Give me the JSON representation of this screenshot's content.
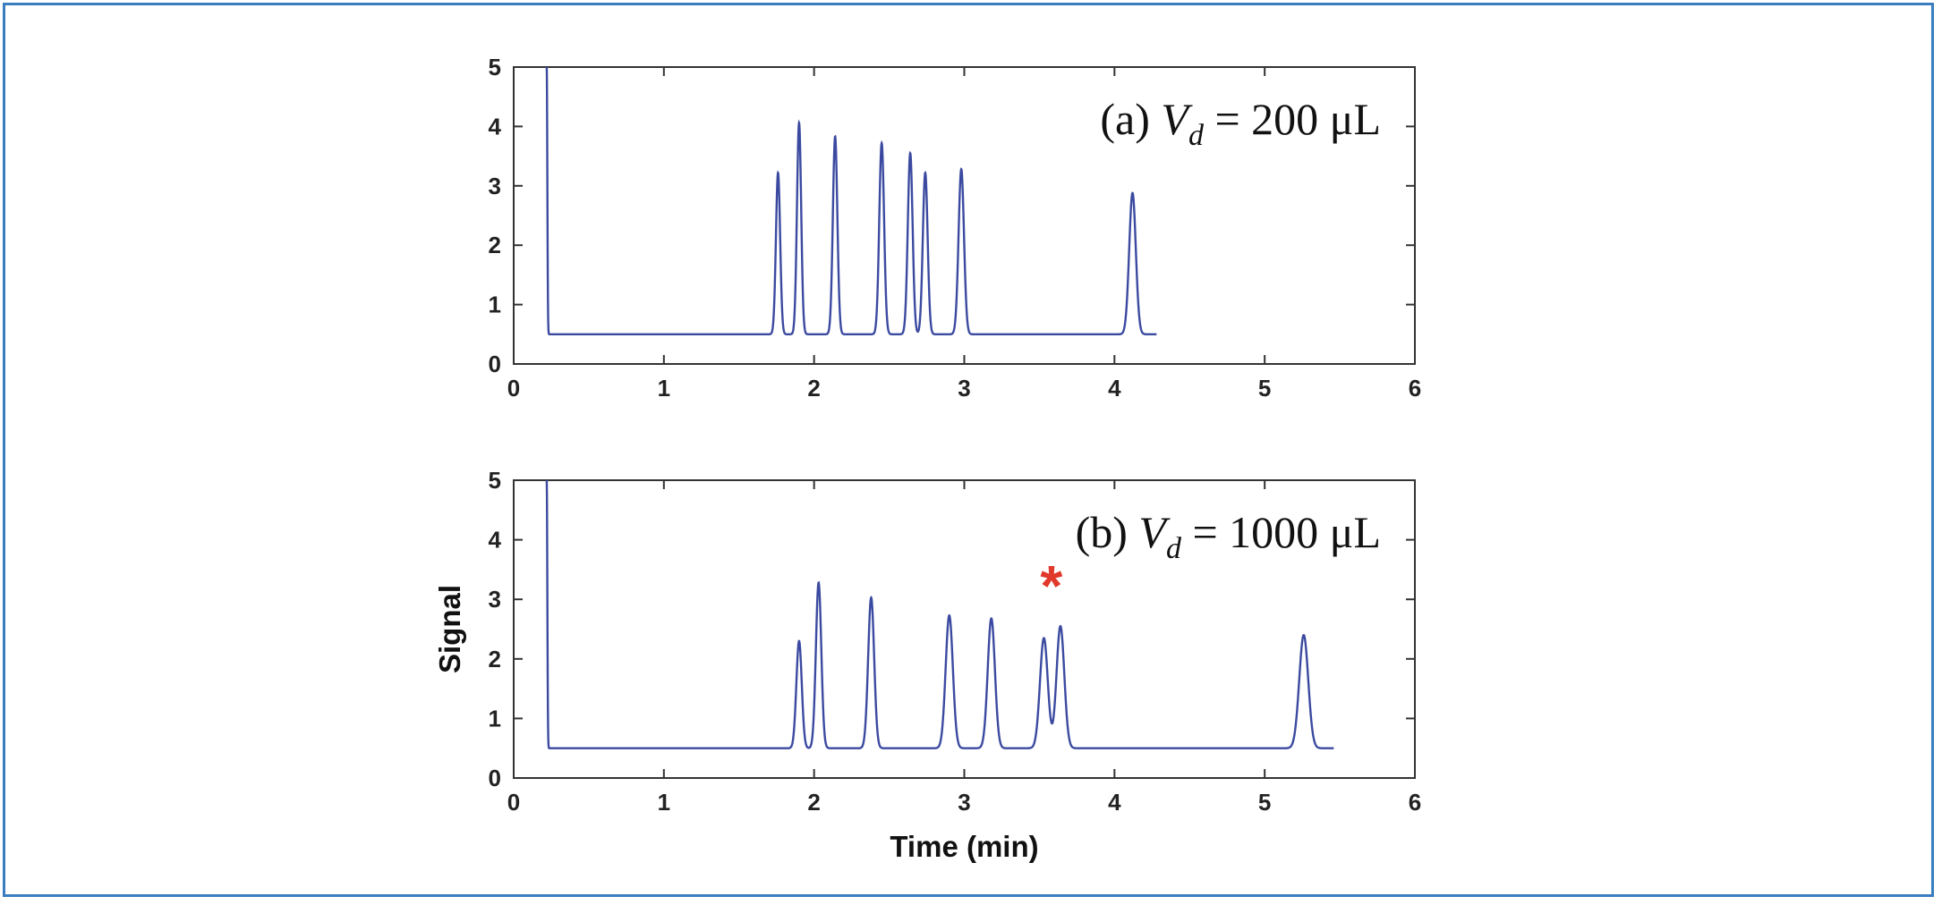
{
  "chart_data": [
    {
      "type": "line",
      "annotation": {
        "prefix": "(a) ",
        "var": "V",
        "sub": "d",
        "rest": " = 200 μL"
      },
      "xlim": [
        0,
        6
      ],
      "ylim": [
        0,
        5
      ],
      "xticks": [
        0,
        1,
        2,
        3,
        4,
        5,
        6
      ],
      "yticks": [
        0,
        1,
        2,
        3,
        4,
        5
      ],
      "xlabel": "",
      "ylabel": "",
      "grid": false,
      "baseline": 0.5,
      "x_end": 4.28,
      "peaks": [
        {
          "x": 0.22,
          "y": 5.0,
          "w": 0.004
        },
        {
          "x": 1.76,
          "y": 3.22,
          "w": 0.014
        },
        {
          "x": 1.9,
          "y": 4.06,
          "w": 0.014
        },
        {
          "x": 2.14,
          "y": 3.83,
          "w": 0.015
        },
        {
          "x": 2.45,
          "y": 3.72,
          "w": 0.016
        },
        {
          "x": 2.64,
          "y": 3.55,
          "w": 0.016
        },
        {
          "x": 2.74,
          "y": 3.22,
          "w": 0.016
        },
        {
          "x": 2.98,
          "y": 3.28,
          "w": 0.018
        },
        {
          "x": 4.12,
          "y": 2.88,
          "w": 0.022
        }
      ],
      "color": "#3b4aa0"
    },
    {
      "type": "line",
      "annotation": {
        "prefix": "(b) ",
        "var": "V",
        "sub": "d",
        "rest": " = 1000 μL"
      },
      "marker": {
        "symbol": "*",
        "x": 3.58,
        "color": "#e0382b"
      },
      "xlim": [
        0,
        6
      ],
      "ylim": [
        0,
        5
      ],
      "xticks": [
        0,
        1,
        2,
        3,
        4,
        5,
        6
      ],
      "yticks": [
        0,
        1,
        2,
        3,
        4,
        5
      ],
      "xlabel": "Time (min)",
      "ylabel": "Signal",
      "grid": false,
      "baseline": 0.5,
      "x_end": 5.46,
      "peaks": [
        {
          "x": 0.22,
          "y": 5.0,
          "w": 0.004
        },
        {
          "x": 1.9,
          "y": 2.3,
          "w": 0.018
        },
        {
          "x": 2.03,
          "y": 3.28,
          "w": 0.018
        },
        {
          "x": 2.38,
          "y": 3.03,
          "w": 0.02
        },
        {
          "x": 2.9,
          "y": 2.73,
          "w": 0.024
        },
        {
          "x": 3.18,
          "y": 2.68,
          "w": 0.024
        },
        {
          "x": 3.53,
          "y": 2.35,
          "w": 0.026
        },
        {
          "x": 3.64,
          "y": 2.55,
          "w": 0.026
        },
        {
          "x": 5.26,
          "y": 2.4,
          "w": 0.03
        }
      ],
      "color": "#3b4aa0"
    }
  ]
}
